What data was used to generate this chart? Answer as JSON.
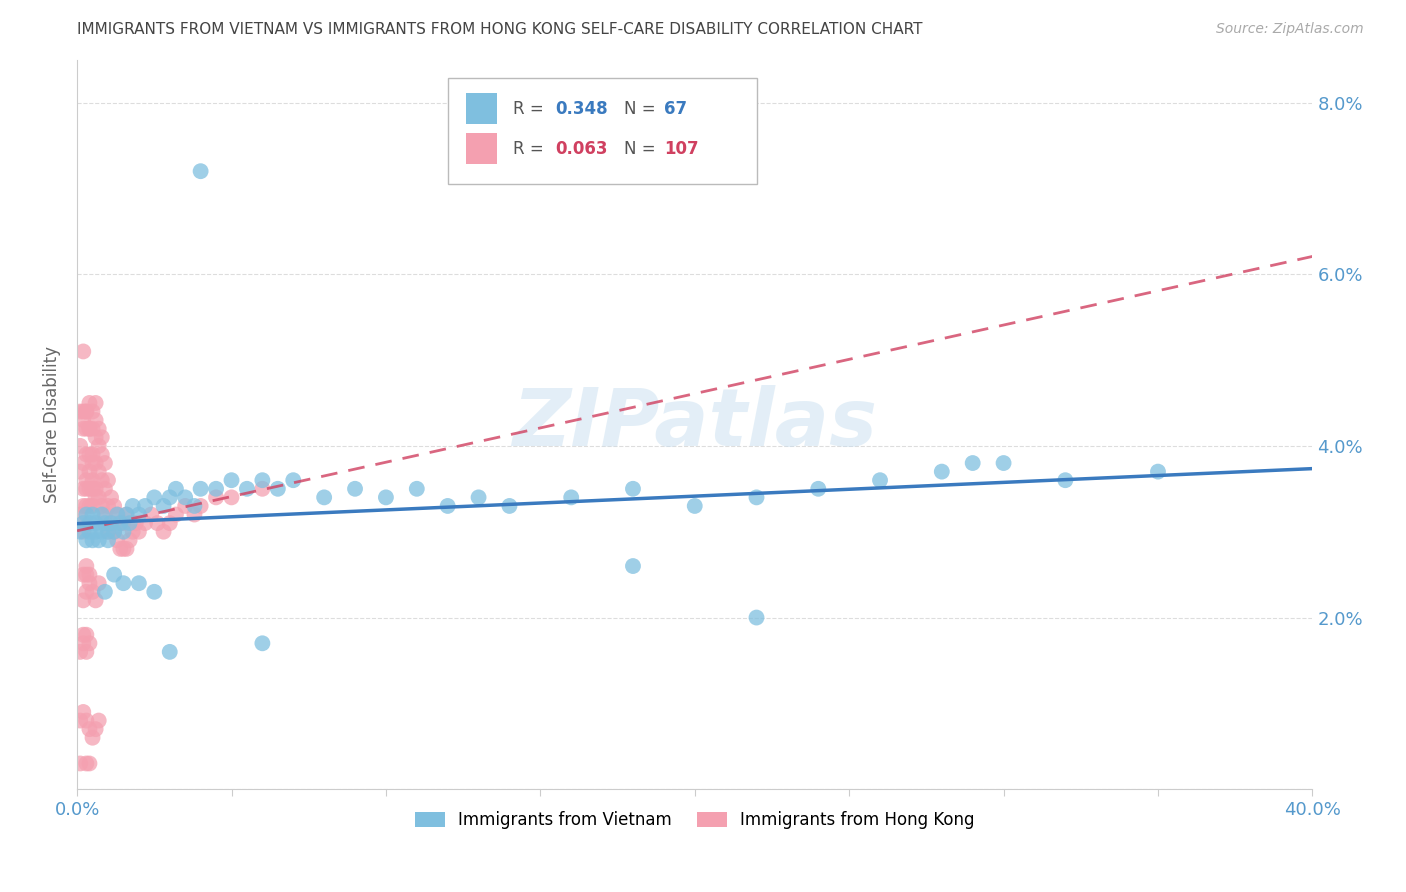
{
  "title": "IMMIGRANTS FROM VIETNAM VS IMMIGRANTS FROM HONG KONG SELF-CARE DISABILITY CORRELATION CHART",
  "source": "Source: ZipAtlas.com",
  "ylabel": "Self-Care Disability",
  "xlim": [
    0.0,
    0.4
  ],
  "ylim": [
    0.0,
    0.085
  ],
  "watermark": "ZIPatlas",
  "series": [
    {
      "name": "Immigrants from Vietnam",
      "R": 0.348,
      "N": 67,
      "color": "#7fbfdf",
      "line_color": "#3a7abf",
      "line_style": "solid",
      "x": [
        0.001,
        0.002,
        0.003,
        0.003,
        0.004,
        0.004,
        0.005,
        0.005,
        0.006,
        0.006,
        0.007,
        0.008,
        0.008,
        0.009,
        0.01,
        0.01,
        0.011,
        0.012,
        0.013,
        0.014,
        0.015,
        0.016,
        0.017,
        0.018,
        0.02,
        0.022,
        0.025,
        0.028,
        0.03,
        0.032,
        0.035,
        0.038,
        0.04,
        0.045,
        0.05,
        0.055,
        0.06,
        0.065,
        0.07,
        0.08,
        0.09,
        0.1,
        0.11,
        0.12,
        0.13,
        0.14,
        0.16,
        0.18,
        0.2,
        0.22,
        0.24,
        0.26,
        0.28,
        0.3,
        0.32,
        0.35,
        0.009,
        0.012,
        0.015,
        0.02,
        0.025,
        0.03,
        0.18,
        0.22,
        0.29,
        0.04,
        0.06
      ],
      "y": [
        0.03,
        0.031,
        0.029,
        0.032,
        0.03,
        0.031,
        0.029,
        0.032,
        0.03,
        0.031,
        0.029,
        0.03,
        0.032,
        0.031,
        0.029,
        0.03,
        0.031,
        0.03,
        0.032,
        0.031,
        0.03,
        0.032,
        0.031,
        0.033,
        0.032,
        0.033,
        0.034,
        0.033,
        0.034,
        0.035,
        0.034,
        0.033,
        0.035,
        0.035,
        0.036,
        0.035,
        0.036,
        0.035,
        0.036,
        0.034,
        0.035,
        0.034,
        0.035,
        0.033,
        0.034,
        0.033,
        0.034,
        0.035,
        0.033,
        0.034,
        0.035,
        0.036,
        0.037,
        0.038,
        0.036,
        0.037,
        0.023,
        0.025,
        0.024,
        0.024,
        0.023,
        0.016,
        0.026,
        0.02,
        0.038,
        0.072,
        0.017
      ]
    },
    {
      "name": "Immigrants from Hong Kong",
      "R": 0.063,
      "N": 107,
      "color": "#f4a0b0",
      "line_color": "#d04060",
      "line_style": "dashed",
      "x": [
        0.001,
        0.001,
        0.001,
        0.002,
        0.002,
        0.002,
        0.002,
        0.002,
        0.003,
        0.003,
        0.003,
        0.003,
        0.003,
        0.004,
        0.004,
        0.004,
        0.004,
        0.004,
        0.005,
        0.005,
        0.005,
        0.005,
        0.005,
        0.006,
        0.006,
        0.006,
        0.006,
        0.006,
        0.007,
        0.007,
        0.007,
        0.007,
        0.008,
        0.008,
        0.008,
        0.008,
        0.009,
        0.009,
        0.009,
        0.01,
        0.01,
        0.01,
        0.011,
        0.011,
        0.012,
        0.012,
        0.013,
        0.013,
        0.014,
        0.014,
        0.015,
        0.015,
        0.016,
        0.016,
        0.017,
        0.018,
        0.019,
        0.02,
        0.022,
        0.024,
        0.026,
        0.028,
        0.03,
        0.032,
        0.035,
        0.038,
        0.04,
        0.045,
        0.05,
        0.06,
        0.001,
        0.002,
        0.002,
        0.003,
        0.003,
        0.004,
        0.004,
        0.005,
        0.005,
        0.006,
        0.002,
        0.003,
        0.004,
        0.005,
        0.006,
        0.007,
        0.002,
        0.003,
        0.003,
        0.004,
        0.001,
        0.002,
        0.003,
        0.004,
        0.002,
        0.003,
        0.001,
        0.002,
        0.003,
        0.004,
        0.005,
        0.006,
        0.007,
        0.002,
        0.001,
        0.003,
        0.004
      ],
      "y": [
        0.037,
        0.04,
        0.044,
        0.038,
        0.042,
        0.044,
        0.043,
        0.03,
        0.035,
        0.039,
        0.042,
        0.044,
        0.044,
        0.037,
        0.039,
        0.042,
        0.045,
        0.042,
        0.036,
        0.039,
        0.042,
        0.044,
        0.038,
        0.035,
        0.038,
        0.041,
        0.043,
        0.045,
        0.034,
        0.037,
        0.04,
        0.042,
        0.033,
        0.036,
        0.039,
        0.041,
        0.032,
        0.035,
        0.038,
        0.03,
        0.033,
        0.036,
        0.031,
        0.034,
        0.03,
        0.033,
        0.029,
        0.032,
        0.028,
        0.031,
        0.028,
        0.031,
        0.028,
        0.032,
        0.029,
        0.03,
        0.031,
        0.03,
        0.031,
        0.032,
        0.031,
        0.03,
        0.031,
        0.032,
        0.033,
        0.032,
        0.033,
        0.034,
        0.034,
        0.035,
        0.032,
        0.033,
        0.035,
        0.033,
        0.036,
        0.033,
        0.035,
        0.033,
        0.035,
        0.034,
        0.022,
        0.023,
        0.024,
        0.023,
        0.022,
        0.024,
        0.025,
        0.025,
        0.026,
        0.025,
        0.016,
        0.017,
        0.016,
        0.017,
        0.018,
        0.018,
        0.008,
        0.009,
        0.008,
        0.007,
        0.006,
        0.007,
        0.008,
        0.051,
        0.003,
        0.003,
        0.003
      ]
    }
  ],
  "background_color": "#ffffff",
  "grid_color": "#cccccc",
  "title_color": "#444444",
  "right_axis_color": "#5599cc"
}
